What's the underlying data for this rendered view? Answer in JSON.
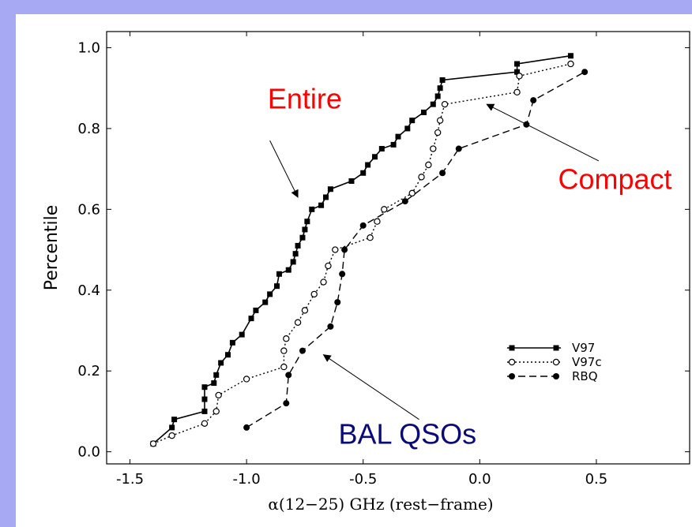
{
  "chart_data": {
    "type": "line",
    "xlabel": "α(12−25) GHz (rest−frame)",
    "ylabel": "Percentile",
    "xlim": [
      -1.6,
      0.9
    ],
    "ylim": [
      -0.03,
      1.04
    ],
    "xticks": [
      -1.5,
      -1.0,
      -0.5,
      0.0,
      0.5
    ],
    "xtick_labels": [
      "-1.5",
      "-1.0",
      "-0.5",
      "0.0",
      "0.5"
    ],
    "yticks": [
      0.0,
      0.2,
      0.4,
      0.6,
      0.8,
      1.0
    ],
    "ytick_labels": [
      "0.0",
      "0.2",
      "0.4",
      "0.6",
      "0.8",
      "1.0"
    ],
    "grid": false,
    "legend_position": "lower-right",
    "series": [
      {
        "name": "V97",
        "style": "solid",
        "marker": "square",
        "color": "#000000",
        "points": [
          [
            -1.4,
            0.02
          ],
          [
            -1.32,
            0.06
          ],
          [
            -1.31,
            0.08
          ],
          [
            -1.18,
            0.1
          ],
          [
            -1.18,
            0.13
          ],
          [
            -1.18,
            0.16
          ],
          [
            -1.14,
            0.17
          ],
          [
            -1.13,
            0.19
          ],
          [
            -1.11,
            0.22
          ],
          [
            -1.08,
            0.24
          ],
          [
            -1.06,
            0.27
          ],
          [
            -1.02,
            0.29
          ],
          [
            -0.98,
            0.33
          ],
          [
            -0.96,
            0.35
          ],
          [
            -0.92,
            0.37
          ],
          [
            -0.9,
            0.39
          ],
          [
            -0.87,
            0.41
          ],
          [
            -0.86,
            0.44
          ],
          [
            -0.82,
            0.45
          ],
          [
            -0.8,
            0.47
          ],
          [
            -0.79,
            0.49
          ],
          [
            -0.78,
            0.51
          ],
          [
            -0.76,
            0.53
          ],
          [
            -0.75,
            0.55
          ],
          [
            -0.74,
            0.57
          ],
          [
            -0.72,
            0.6
          ],
          [
            -0.68,
            0.61
          ],
          [
            -0.66,
            0.63
          ],
          [
            -0.64,
            0.65
          ],
          [
            -0.55,
            0.67
          ],
          [
            -0.5,
            0.69
          ],
          [
            -0.48,
            0.71
          ],
          [
            -0.45,
            0.73
          ],
          [
            -0.42,
            0.75
          ],
          [
            -0.37,
            0.76
          ],
          [
            -0.35,
            0.78
          ],
          [
            -0.31,
            0.8
          ],
          [
            -0.29,
            0.82
          ],
          [
            -0.24,
            0.84
          ],
          [
            -0.2,
            0.86
          ],
          [
            -0.18,
            0.88
          ],
          [
            -0.17,
            0.9
          ],
          [
            -0.16,
            0.92
          ],
          [
            0.16,
            0.94
          ],
          [
            0.16,
            0.96
          ],
          [
            0.39,
            0.98
          ]
        ]
      },
      {
        "name": "V97c",
        "style": "dotted",
        "marker": "open-circle",
        "color": "#000000",
        "points": [
          [
            -1.4,
            0.02
          ],
          [
            -1.32,
            0.04
          ],
          [
            -1.18,
            0.07
          ],
          [
            -1.13,
            0.1
          ],
          [
            -1.12,
            0.14
          ],
          [
            -1.0,
            0.18
          ],
          [
            -0.84,
            0.21
          ],
          [
            -0.84,
            0.25
          ],
          [
            -0.83,
            0.28
          ],
          [
            -0.78,
            0.32
          ],
          [
            -0.75,
            0.35
          ],
          [
            -0.71,
            0.39
          ],
          [
            -0.67,
            0.42
          ],
          [
            -0.65,
            0.46
          ],
          [
            -0.62,
            0.5
          ],
          [
            -0.47,
            0.53
          ],
          [
            -0.44,
            0.57
          ],
          [
            -0.41,
            0.6
          ],
          [
            -0.29,
            0.64
          ],
          [
            -0.25,
            0.68
          ],
          [
            -0.22,
            0.71
          ],
          [
            -0.2,
            0.75
          ],
          [
            -0.18,
            0.79
          ],
          [
            -0.17,
            0.82
          ],
          [
            -0.15,
            0.86
          ],
          [
            0.16,
            0.89
          ],
          [
            0.17,
            0.93
          ],
          [
            0.39,
            0.96
          ]
        ]
      },
      {
        "name": "RBQ",
        "style": "dashed",
        "marker": "filled-circle",
        "color": "#000000",
        "points": [
          [
            -1.0,
            0.06
          ],
          [
            -0.83,
            0.12
          ],
          [
            -0.82,
            0.19
          ],
          [
            -0.76,
            0.25
          ],
          [
            -0.64,
            0.31
          ],
          [
            -0.61,
            0.37
          ],
          [
            -0.59,
            0.44
          ],
          [
            -0.58,
            0.5
          ],
          [
            -0.5,
            0.56
          ],
          [
            -0.32,
            0.62
          ],
          [
            -0.16,
            0.69
          ],
          [
            -0.09,
            0.75
          ],
          [
            0.2,
            0.81
          ],
          [
            0.23,
            0.87
          ],
          [
            0.45,
            0.94
          ]
        ]
      }
    ],
    "annotations": [
      {
        "text": "Entire",
        "color": "#ff0000",
        "text_x": -0.75,
        "text_y": 0.85,
        "arrow_from": [
          -0.9,
          0.77
        ],
        "arrow_to": [
          -0.78,
          0.63
        ]
      },
      {
        "text": "Compact",
        "color": "#ff0000",
        "text_x": 0.58,
        "text_y": 0.65,
        "arrow_from": [
          0.51,
          0.72
        ],
        "arrow_to": [
          0.03,
          0.86
        ]
      },
      {
        "text": "BAL QSOs",
        "color": "#0a0a78",
        "text_x": -0.31,
        "text_y": 0.02,
        "arrow_from": [
          -0.26,
          0.08
        ],
        "arrow_to": [
          -0.67,
          0.24
        ]
      }
    ]
  }
}
